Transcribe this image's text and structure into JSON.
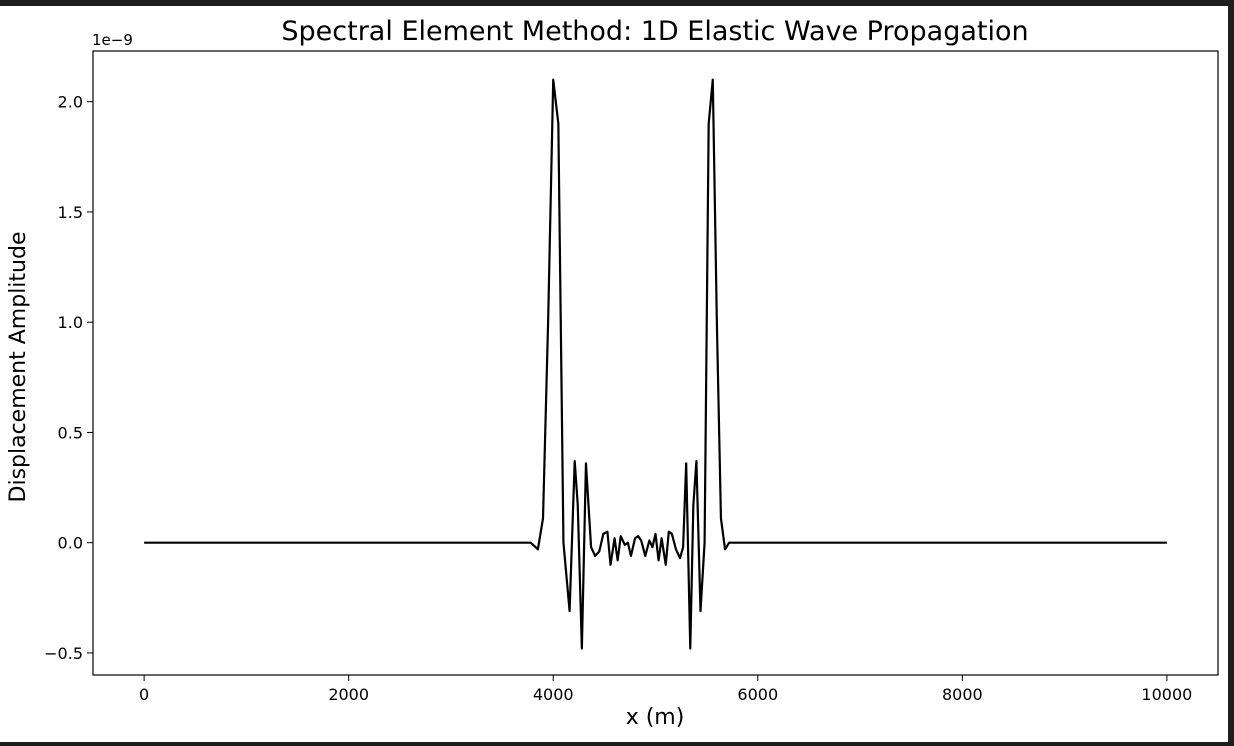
{
  "chart_data": {
    "type": "line",
    "title": "Spectral Element Method: 1D Elastic Wave Propagation",
    "xlabel": "x (m)",
    "ylabel": "Displacement Amplitude",
    "y_offset_label": "1e−9",
    "xlim": [
      -500,
      10500
    ],
    "ylim": [
      -0.6,
      2.23
    ],
    "y_scale_multiplier": 1e-09,
    "x_ticks": [
      0,
      2000,
      4000,
      6000,
      8000,
      10000
    ],
    "x_tick_labels": [
      "0",
      "2000",
      "4000",
      "6000",
      "8000",
      "10000"
    ],
    "y_ticks": [
      -0.5,
      0.0,
      0.5,
      1.0,
      1.5,
      2.0
    ],
    "y_tick_labels": [
      "−0.5",
      "0.0",
      "0.5",
      "1.0",
      "1.5",
      "2.0"
    ],
    "grid": false,
    "line_color": "#000000",
    "series": [
      {
        "x": [
          0,
          3700,
          3780,
          3850,
          3900,
          3950,
          4000,
          4050,
          4100,
          4160,
          4210,
          4240,
          4280,
          4320,
          4370,
          4410,
          4450,
          4490,
          4530,
          4560,
          4600,
          4630,
          4660,
          4700,
          4730,
          4760,
          4800,
          4830,
          4860,
          4900,
          4940,
          4970,
          5000,
          5030,
          5060,
          5100,
          5130,
          5160,
          5200,
          5240,
          5270,
          5300,
          5340,
          5370,
          5400,
          5440,
          5480,
          5520,
          5560,
          5600,
          5640,
          5680,
          5720,
          5760,
          5800,
          5840,
          5890,
          5940,
          5990,
          6040,
          6080,
          6130,
          6170,
          6250,
          10000
        ],
        "y": [
          0,
          0,
          0,
          -0.03,
          0.11,
          1.0,
          2.1,
          1.9,
          0.0,
          -0.31,
          0.37,
          0.17,
          -0.48,
          0.36,
          -0.02,
          -0.06,
          -0.04,
          0.04,
          0.05,
          -0.1,
          0.02,
          -0.08,
          0.03,
          -0.01,
          0.0,
          -0.06,
          0.02,
          0.03,
          0.01,
          -0.06,
          0.01,
          -0.02,
          0.04,
          -0.08,
          0.02,
          -0.1,
          0.05,
          0.04,
          -0.03,
          -0.07,
          -0.02,
          0.36,
          -0.48,
          0.17,
          0.37,
          -0.31,
          0.0,
          1.9,
          2.1,
          1.0,
          0.11,
          -0.03,
          0.0,
          0.0,
          0.0,
          0.0,
          0.0,
          0.0,
          0.0,
          0.0,
          0.0,
          0.0,
          0.0,
          0.0,
          0.0
        ]
      }
    ]
  }
}
